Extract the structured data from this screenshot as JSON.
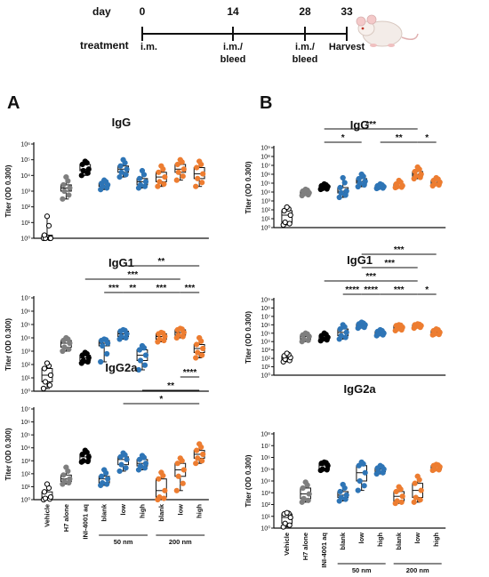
{
  "timeline": {
    "day_label": "day",
    "treatment_label": "treatment",
    "ticks": [
      {
        "day": "0",
        "event": [
          "i.m."
        ]
      },
      {
        "day": "14",
        "event": [
          "i.m./",
          "bleed"
        ]
      },
      {
        "day": "28",
        "event": [
          "i.m./",
          "bleed"
        ]
      },
      {
        "day": "33",
        "event": [
          "Harvest"
        ]
      }
    ]
  },
  "panels": [
    {
      "letter": "A"
    },
    {
      "letter": "B"
    }
  ],
  "groups": [
    "Vehicle",
    "H7 alone",
    "INI-4001 aq",
    "blank",
    "low",
    "high",
    "blank",
    "low",
    "high"
  ],
  "bracket_labels": [
    "50 nm",
    "200 nm"
  ],
  "colors": {
    "Vehicle": "#000000",
    "H7 alone": "#7f7f7f",
    "INI-4001 aq": "#000000",
    "50 nm": "#2e75b6",
    "200 nm": "#ed7d31"
  },
  "chart_data": [
    {
      "panel": "A",
      "title": "IgG",
      "type": "box",
      "ylabel": "Titer (OD 0.300)",
      "log_scale": true,
      "ylim_exp": [
        0,
        6
      ],
      "ytick_labels": [
        "10⁰",
        "10¹",
        "10²",
        "10³",
        "10⁴",
        "10⁵",
        "10⁶"
      ],
      "boxes": [
        [
          0,
          0,
          0,
          0.2,
          1.4
        ],
        [
          2.5,
          3.0,
          3.2,
          3.4,
          3.9
        ],
        [
          4.0,
          4.3,
          4.4,
          4.7,
          4.9
        ],
        [
          3.1,
          3.3,
          3.4,
          3.5,
          3.7
        ],
        [
          3.9,
          4.2,
          4.4,
          4.6,
          5.0
        ],
        [
          3.2,
          3.4,
          3.6,
          3.8,
          4.3
        ],
        [
          3.3,
          3.6,
          3.9,
          4.2,
          4.6
        ],
        [
          3.7,
          4.2,
          4.4,
          4.7,
          5.0
        ],
        [
          3.3,
          3.8,
          4.1,
          4.5,
          4.9
        ]
      ],
      "significance": []
    },
    {
      "panel": "A",
      "title": "IgG1",
      "type": "box",
      "ylabel": "Titer (OD 0.300)",
      "log_scale": true,
      "ylim_exp": [
        0,
        7
      ],
      "ytick_labels": [
        "10⁰",
        "10¹",
        "10²",
        "10³",
        "10⁴",
        "10⁵",
        "10⁶",
        "10⁷"
      ],
      "boxes": [
        [
          0.2,
          0.7,
          1.2,
          1.7,
          2.1
        ],
        [
          3.0,
          3.3,
          3.6,
          3.8,
          4.0
        ],
        [
          2.1,
          2.3,
          2.5,
          2.7,
          2.9
        ],
        [
          2.2,
          3.4,
          3.6,
          3.8,
          3.9
        ],
        [
          3.9,
          4.1,
          4.3,
          4.5,
          4.6
        ],
        [
          1.6,
          2.3,
          2.7,
          3.1,
          3.4
        ],
        [
          3.7,
          3.9,
          4.1,
          4.3,
          4.4
        ],
        [
          4.0,
          4.2,
          4.4,
          4.6,
          4.7
        ],
        [
          2.5,
          2.9,
          3.2,
          3.5,
          4.0
        ]
      ],
      "significance": [
        {
          "from": 3,
          "to": 4,
          "label": "***",
          "level": 0
        },
        {
          "from": 4,
          "to": 5,
          "label": "**",
          "level": 0
        },
        {
          "from": 5,
          "to": 7,
          "label": "***",
          "level": 0
        },
        {
          "from": 7,
          "to": 8,
          "label": "***",
          "level": 0
        },
        {
          "from": 2,
          "to": 7,
          "label": "***",
          "level": 1
        },
        {
          "from": 4,
          "to": 8,
          "label": "**",
          "level": 2
        }
      ]
    },
    {
      "panel": "A",
      "title": "IgG2a",
      "type": "box",
      "ylabel": "Titer (OD 0.300)",
      "log_scale": true,
      "ylim_exp": [
        0,
        7
      ],
      "ytick_labels": [
        "10⁰",
        "10¹",
        "10²",
        "10³",
        "10⁴",
        "10⁵",
        "10⁶",
        "10⁷"
      ],
      "boxes": [
        [
          0,
          0.1,
          0.2,
          0.6,
          1.2
        ],
        [
          1.2,
          1.4,
          1.6,
          1.9,
          2.5
        ],
        [
          2.9,
          3.0,
          3.3,
          3.5,
          3.8
        ],
        [
          1.1,
          1.3,
          1.6,
          1.8,
          2.3
        ],
        [
          2.2,
          2.7,
          3.1,
          3.3,
          3.6
        ],
        [
          2.3,
          2.6,
          2.8,
          3.1,
          3.4
        ],
        [
          0,
          0.2,
          0.7,
          1.6,
          2.1
        ],
        [
          0.7,
          1.8,
          2.3,
          2.8,
          3.2
        ],
        [
          2.8,
          3.2,
          3.5,
          3.8,
          4.3
        ]
      ],
      "significance": [
        {
          "from": 4,
          "to": 8,
          "label": "*",
          "level": 0
        },
        {
          "from": 5,
          "to": 8,
          "label": "**",
          "level": 1
        },
        {
          "from": 7,
          "to": 8,
          "label": "****",
          "level": 2
        }
      ]
    },
    {
      "panel": "B",
      "title": "IgG",
      "type": "box",
      "ylabel": "Titer (OD 0.300)",
      "log_scale": true,
      "ylim_exp": [
        0,
        9
      ],
      "ytick_labels": [
        "10⁰",
        "10¹",
        "10²",
        "10³",
        "10⁴",
        "10⁵",
        "10⁶",
        "10⁷",
        "10⁸",
        "10⁹"
      ],
      "boxes": [
        [
          0.3,
          0.6,
          1.4,
          1.9,
          2.3
        ],
        [
          3.6,
          3.8,
          3.9,
          4.1,
          4.3
        ],
        [
          4.3,
          4.4,
          4.6,
          4.7,
          4.9
        ],
        [
          3.4,
          3.9,
          4.1,
          4.5,
          5.6
        ],
        [
          4.6,
          5.0,
          5.2,
          5.5,
          6.0
        ],
        [
          4.4,
          4.5,
          4.6,
          4.7,
          4.9
        ],
        [
          4.5,
          4.6,
          4.7,
          4.9,
          5.3
        ],
        [
          5.5,
          5.8,
          6.0,
          6.3,
          6.8
        ],
        [
          4.7,
          4.9,
          5.1,
          5.3,
          5.6
        ]
      ],
      "significance": [
        {
          "from": 2,
          "to": 4,
          "label": "*",
          "level": 0
        },
        {
          "from": 5,
          "to": 7,
          "label": "**",
          "level": 0
        },
        {
          "from": 7,
          "to": 8,
          "label": "*",
          "level": 0
        },
        {
          "from": 2,
          "to": 7,
          "label": "***",
          "level": 1
        }
      ]
    },
    {
      "panel": "B",
      "title": "IgG1",
      "type": "box",
      "ylabel": "Titer (OD 0.300)",
      "log_scale": true,
      "ylim_exp": [
        0,
        9
      ],
      "ytick_labels": [
        "10⁰",
        "10¹",
        "10²",
        "10³",
        "10⁴",
        "10⁵",
        "10⁶",
        "10⁷",
        "10⁸",
        "10⁹"
      ],
      "boxes": [
        [
          1.6,
          1.9,
          2.1,
          2.3,
          2.6
        ],
        [
          4.0,
          4.3,
          4.6,
          4.8,
          5.0
        ],
        [
          4.1,
          4.3,
          4.5,
          4.7,
          5.0
        ],
        [
          4.3,
          4.7,
          5.1,
          5.5,
          6.0
        ],
        [
          5.6,
          5.8,
          6.0,
          6.1,
          6.3
        ],
        [
          4.7,
          4.9,
          5.0,
          5.2,
          5.4
        ],
        [
          5.3,
          5.5,
          5.7,
          5.9,
          6.0
        ],
        [
          5.6,
          5.8,
          5.9,
          6.0,
          6.1
        ],
        [
          4.8,
          4.9,
          5.1,
          5.3,
          5.5
        ]
      ],
      "significance": [
        {
          "from": 3,
          "to": 4,
          "label": "****",
          "level": 0
        },
        {
          "from": 4,
          "to": 5,
          "label": "****",
          "level": 0
        },
        {
          "from": 5,
          "to": 7,
          "label": "***",
          "level": 0
        },
        {
          "from": 7,
          "to": 8,
          "label": "*",
          "level": 0
        },
        {
          "from": 2,
          "to": 7,
          "label": "***",
          "level": 1
        },
        {
          "from": 4,
          "to": 7,
          "label": "***",
          "level": 2
        },
        {
          "from": 4,
          "to": 8,
          "label": "***",
          "level": 3
        }
      ]
    },
    {
      "panel": "B",
      "title": "IgG2a",
      "type": "box",
      "ylabel": "Titer (OD 0.300)",
      "log_scale": true,
      "ylim_exp": [
        0,
        8
      ],
      "ytick_labels": [
        "10⁰",
        "10¹",
        "10²",
        "10³",
        "10⁴",
        "10⁵",
        "10⁶",
        "10⁷",
        "10⁸"
      ],
      "boxes": [
        [
          0.1,
          0.4,
          0.9,
          1.2,
          1.3
        ],
        [
          2.2,
          2.5,
          2.9,
          3.4,
          3.9
        ],
        [
          4.9,
          5.0,
          5.3,
          5.5,
          5.6
        ],
        [
          2.3,
          2.6,
          2.8,
          3.1,
          3.7
        ],
        [
          3.2,
          4.0,
          4.7,
          5.3,
          5.6
        ],
        [
          4.6,
          4.8,
          5.0,
          5.1,
          5.3
        ],
        [
          2.1,
          2.3,
          2.7,
          3.1,
          3.5
        ],
        [
          2.2,
          2.6,
          3.2,
          3.8,
          4.4
        ],
        [
          4.9,
          5.0,
          5.2,
          5.3,
          5.4
        ]
      ],
      "significance": []
    }
  ]
}
